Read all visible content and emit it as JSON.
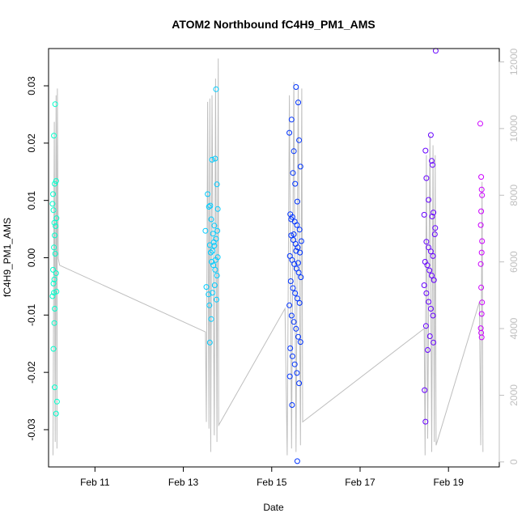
{
  "chart_data": {
    "type": "scatter",
    "title": "ATOM2 Northbound fC4H9_PM1_AMS",
    "xlabel": "Date",
    "ylabel": "fC4H9_PM1_AMS",
    "x_ticks": [
      {
        "day": 11,
        "label": "Feb 11"
      },
      {
        "day": 13,
        "label": "Feb 13"
      },
      {
        "day": 15,
        "label": "Feb 15"
      },
      {
        "day": 17,
        "label": "Feb 17"
      },
      {
        "day": 19,
        "label": "Feb 19"
      }
    ],
    "xlim": [
      9.95,
      20.15
    ],
    "ylim": [
      -0.0365,
      0.0365
    ],
    "y_ticks": [
      {
        "value": -0.03,
        "label": "-0.03"
      },
      {
        "value": -0.02,
        "label": "-0.02"
      },
      {
        "value": -0.01,
        "label": "-0.01"
      },
      {
        "value": 0.0,
        "label": "0.00"
      },
      {
        "value": 0.01,
        "label": "0.01"
      },
      {
        "value": 0.02,
        "label": "0.02"
      },
      {
        "value": 0.03,
        "label": "0.03"
      }
    ],
    "y2lim": [
      -150,
      12400
    ],
    "y2_ticks": [
      {
        "value": 0,
        "label": "0"
      },
      {
        "value": 2000,
        "label": "2000"
      },
      {
        "value": 4000,
        "label": "4000"
      },
      {
        "value": 6000,
        "label": "6000"
      },
      {
        "value": 8000,
        "label": "8000"
      },
      {
        "value": 10000,
        "label": "10000"
      },
      {
        "value": 12000,
        "label": "12000"
      }
    ],
    "colors": {
      "altitude_line": "#bebebe",
      "point_scale": [
        "#00ffcc",
        "#00ccff",
        "#0033ff",
        "#6600ff",
        "#cc00ff"
      ]
    },
    "altitude_track": [
      [
        10.05,
        200
      ],
      [
        10.08,
        10200
      ],
      [
        10.1,
        600
      ],
      [
        10.12,
        11000
      ],
      [
        10.14,
        400
      ],
      [
        10.15,
        11200
      ],
      [
        10.17,
        6100
      ],
      [
        10.2,
        5900
      ],
      [
        13.5,
        3900
      ],
      [
        13.52,
        1200
      ],
      [
        13.55,
        10800
      ],
      [
        13.58,
        1000
      ],
      [
        13.6,
        10900
      ],
      [
        13.62,
        300
      ],
      [
        13.65,
        11000
      ],
      [
        13.7,
        800
      ],
      [
        13.73,
        11500
      ],
      [
        13.76,
        600
      ],
      [
        13.79,
        12100
      ],
      [
        13.8,
        1100
      ],
      [
        15.3,
        4600
      ],
      [
        15.35,
        200
      ],
      [
        15.4,
        11000
      ],
      [
        15.45,
        400
      ],
      [
        15.5,
        11400
      ],
      [
        15.55,
        300
      ],
      [
        15.6,
        11300
      ],
      [
        15.65,
        500
      ],
      [
        15.68,
        11200
      ],
      [
        15.7,
        1200
      ],
      [
        18.45,
        4000
      ],
      [
        18.47,
        200
      ],
      [
        18.5,
        9200
      ],
      [
        18.53,
        700
      ],
      [
        18.58,
        9800
      ],
      [
        18.62,
        300
      ],
      [
        18.65,
        9500
      ],
      [
        18.68,
        600
      ],
      [
        18.7,
        9200
      ],
      [
        18.72,
        500
      ],
      [
        19.7,
        4800
      ],
      [
        19.73,
        500
      ],
      [
        19.76,
        8400
      ],
      [
        19.78,
        300
      ]
    ],
    "series": [
      {
        "name": "",
        "color_index": 0,
        "points": [
          [
            10.07,
            0.0213
          ],
          [
            10.1,
            0.0268
          ],
          [
            10.12,
            0.0134
          ],
          [
            10.09,
            0.0129
          ],
          [
            10.05,
            0.0111
          ],
          [
            10.04,
            0.0094
          ],
          [
            10.06,
            0.0083
          ],
          [
            10.13,
            0.0069
          ],
          [
            10.08,
            0.0061
          ],
          [
            10.11,
            0.0055
          ],
          [
            10.09,
            0.0039
          ],
          [
            10.07,
            0.0018
          ],
          [
            10.1,
            0.0007
          ],
          [
            10.05,
            -0.0021
          ],
          [
            10.12,
            -0.0027
          ],
          [
            10.08,
            -0.0038
          ],
          [
            10.06,
            -0.0045
          ],
          [
            10.13,
            -0.0059
          ],
          [
            10.07,
            -0.0061
          ],
          [
            10.04,
            -0.0067
          ],
          [
            10.09,
            -0.0089
          ],
          [
            10.08,
            -0.0114
          ],
          [
            10.06,
            -0.0159
          ],
          [
            10.09,
            -0.0226
          ],
          [
            10.14,
            -0.0251
          ],
          [
            10.12,
            -0.0272
          ]
        ]
      },
      {
        "name": "",
        "color_index": 1,
        "points": [
          [
            13.5,
            0.0047
          ],
          [
            13.55,
            0.0111
          ],
          [
            13.58,
            0.0089
          ],
          [
            13.61,
            0.0091
          ],
          [
            13.63,
            0.0067
          ],
          [
            13.65,
            0.0171
          ],
          [
            13.67,
            0.0042
          ],
          [
            13.7,
            0.0056
          ],
          [
            13.72,
            0.0173
          ],
          [
            13.74,
            0.0294
          ],
          [
            13.76,
            0.0128
          ],
          [
            13.78,
            0.0085
          ],
          [
            13.6,
            0.0022
          ],
          [
            13.62,
            0.0009
          ],
          [
            13.64,
            -0.0007
          ],
          [
            13.66,
            0.0012
          ],
          [
            13.68,
            -0.0013
          ],
          [
            13.7,
            0.0021
          ],
          [
            13.72,
            -0.0021
          ],
          [
            13.74,
            0.0033
          ],
          [
            13.76,
            -0.0031
          ],
          [
            13.78,
            0.0001
          ],
          [
            13.52,
            -0.0051
          ],
          [
            13.57,
            -0.0064
          ],
          [
            13.59,
            -0.0083
          ],
          [
            13.63,
            -0.0107
          ],
          [
            13.66,
            -0.0061
          ],
          [
            13.71,
            -0.0048
          ],
          [
            13.75,
            -0.0073
          ],
          [
            13.6,
            -0.0148
          ],
          [
            13.69,
            0.0027
          ],
          [
            13.73,
            -0.0004
          ],
          [
            13.77,
            0.0047
          ]
        ]
      },
      {
        "name": "",
        "color_index": 2,
        "points": [
          [
            15.4,
            0.0218
          ],
          [
            15.45,
            0.0241
          ],
          [
            15.5,
            0.0186
          ],
          [
            15.55,
            0.0298
          ],
          [
            15.6,
            0.0271
          ],
          [
            15.62,
            0.0205
          ],
          [
            15.65,
            0.0159
          ],
          [
            15.48,
            0.0148
          ],
          [
            15.53,
            0.0129
          ],
          [
            15.58,
            0.0098
          ],
          [
            15.42,
            0.0076
          ],
          [
            15.47,
            0.0071
          ],
          [
            15.52,
            0.0063
          ],
          [
            15.57,
            0.0057
          ],
          [
            15.63,
            0.0049
          ],
          [
            15.44,
            0.0039
          ],
          [
            15.49,
            0.0031
          ],
          [
            15.54,
            0.0024
          ],
          [
            15.59,
            0.0018
          ],
          [
            15.64,
            0.0009
          ],
          [
            15.41,
            0.0003
          ],
          [
            15.46,
            -0.0004
          ],
          [
            15.51,
            -0.0011
          ],
          [
            15.56,
            -0.0019
          ],
          [
            15.61,
            -0.0026
          ],
          [
            15.66,
            -0.0034
          ],
          [
            15.43,
            -0.0041
          ],
          [
            15.48,
            -0.0053
          ],
          [
            15.53,
            -0.0062
          ],
          [
            15.58,
            -0.0071
          ],
          [
            15.63,
            -0.0079
          ],
          [
            15.4,
            -0.0083
          ],
          [
            15.45,
            -0.0101
          ],
          [
            15.5,
            -0.0112
          ],
          [
            15.55,
            -0.0124
          ],
          [
            15.6,
            -0.0138
          ],
          [
            15.65,
            -0.0147
          ],
          [
            15.42,
            -0.0158
          ],
          [
            15.47,
            -0.0172
          ],
          [
            15.52,
            -0.0186
          ],
          [
            15.57,
            -0.0201
          ],
          [
            15.62,
            -0.0219
          ],
          [
            15.41,
            -0.0207
          ],
          [
            15.46,
            -0.0257
          ],
          [
            15.58,
            -0.0355
          ],
          [
            15.44,
            0.0067
          ],
          [
            15.5,
            0.0041
          ],
          [
            15.55,
            0.0012
          ],
          [
            15.6,
            -0.0009
          ],
          [
            15.67,
            0.0029
          ]
        ]
      },
      {
        "name": "",
        "color_index": 3,
        "points": [
          [
            18.45,
            0.0075
          ],
          [
            18.48,
            0.0187
          ],
          [
            18.5,
            0.0139
          ],
          [
            18.55,
            0.0101
          ],
          [
            18.6,
            0.0214
          ],
          [
            18.62,
            0.0169
          ],
          [
            18.64,
            0.0162
          ],
          [
            18.66,
            0.0079
          ],
          [
            18.7,
            0.0052
          ],
          [
            18.5,
            0.0028
          ],
          [
            18.55,
            0.0018
          ],
          [
            18.6,
            0.0011
          ],
          [
            18.65,
            0.0003
          ],
          [
            18.47,
            -0.0007
          ],
          [
            18.52,
            -0.0013
          ],
          [
            18.57,
            -0.0022
          ],
          [
            18.62,
            -0.0031
          ],
          [
            18.67,
            -0.0039
          ],
          [
            18.45,
            -0.0048
          ],
          [
            18.5,
            -0.0062
          ],
          [
            18.55,
            -0.0077
          ],
          [
            18.6,
            -0.0089
          ],
          [
            18.65,
            -0.0101
          ],
          [
            18.49,
            -0.0119
          ],
          [
            18.58,
            -0.0137
          ],
          [
            18.66,
            -0.0148
          ],
          [
            18.53,
            -0.0161
          ],
          [
            18.46,
            -0.0231
          ],
          [
            18.48,
            -0.0286
          ],
          [
            18.71,
            0.0361
          ],
          [
            18.63,
            0.0072
          ],
          [
            18.69,
            0.0041
          ]
        ]
      },
      {
        "name": "",
        "color_index": 4,
        "points": [
          [
            19.72,
            0.0234
          ],
          [
            19.74,
            0.0141
          ],
          [
            19.75,
            0.0119
          ],
          [
            19.76,
            0.0109
          ],
          [
            19.74,
            0.0081
          ],
          [
            19.73,
            0.0057
          ],
          [
            19.76,
            0.0029
          ],
          [
            19.75,
            0.0009
          ],
          [
            19.73,
            -0.0011
          ],
          [
            19.74,
            -0.0052
          ],
          [
            19.76,
            -0.0078
          ],
          [
            19.75,
            -0.0098
          ],
          [
            19.73,
            -0.0123
          ],
          [
            19.74,
            -0.0131
          ],
          [
            19.75,
            -0.0139
          ]
        ]
      }
    ]
  }
}
